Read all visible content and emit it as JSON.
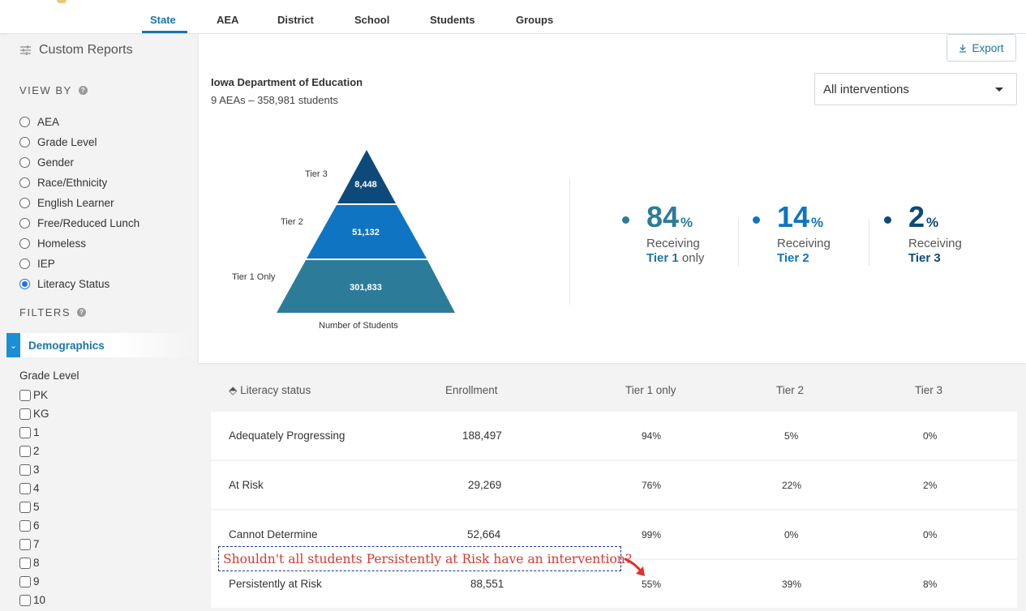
{
  "nav": {
    "tabs": [
      {
        "label": "State",
        "active": true
      },
      {
        "label": "AEA"
      },
      {
        "label": "District"
      },
      {
        "label": "School"
      },
      {
        "label": "Students"
      },
      {
        "label": "Groups"
      }
    ]
  },
  "sidebar": {
    "custom_reports": "Custom Reports",
    "view_by": "VIEW BY",
    "view_options": [
      "AEA",
      "Grade Level",
      "Gender",
      "Race/Ethnicity",
      "English Learner",
      "Free/Reduced Lunch",
      "Homeless",
      "IEP",
      "Literacy Status"
    ],
    "selected_view": "Literacy Status",
    "filters": "FILTERS",
    "demographics": "Demographics",
    "grade_level_title": "Grade Level",
    "grades": [
      "PK",
      "KG",
      "1",
      "2",
      "3",
      "4",
      "5",
      "6",
      "7",
      "8",
      "9",
      "10"
    ]
  },
  "card": {
    "export_label": "Export",
    "org_title": "Iowa Department of Education",
    "org_sub": "9 AEAs – 358,981 students",
    "select_value": "All interventions",
    "pyramid": {
      "tiers": [
        {
          "label": "Tier 3",
          "value": "8,448",
          "color": "#0d4a7a"
        },
        {
          "label": "Tier 2",
          "value": "51,132",
          "color": "#0f74c2"
        },
        {
          "label": "Tier 1 Only",
          "value": "301,833",
          "color": "#2c7c99"
        }
      ],
      "axis_label": "Number of Students"
    },
    "stats": [
      {
        "value": "84",
        "pct": "%",
        "line1": "Receiving",
        "tier": "Tier 1",
        "suffix": " only",
        "color": "#2c7c99"
      },
      {
        "value": "14",
        "pct": "%",
        "line1": "Receiving",
        "tier": "Tier 2",
        "suffix": "",
        "color": "#0f74c2"
      },
      {
        "value": "2",
        "pct": "%",
        "line1": "Receiving",
        "tier": "Tier 3",
        "suffix": "",
        "color": "#0d4a7a"
      }
    ]
  },
  "table": {
    "sort_icon": "⬘",
    "headers": [
      "Literacy status",
      "Enrollment",
      "Tier 1 only",
      "Tier 2",
      "Tier 3"
    ],
    "rows": [
      {
        "status": "Adequately Progressing",
        "enrollment": "188,497",
        "tier1": "94%",
        "tier2": "5%",
        "tier3": "0%"
      },
      {
        "status": "At Risk",
        "enrollment": "29,269",
        "tier1": "76%",
        "tier2": "22%",
        "tier3": "2%"
      },
      {
        "status": "Cannot Determine",
        "enrollment": "52,664",
        "tier1": "99%",
        "tier2": "0%",
        "tier3": "0%"
      },
      {
        "status": "Persistently at Risk",
        "enrollment": "88,551",
        "tier1": "55%",
        "tier2": "39%",
        "tier3": "8%"
      }
    ]
  },
  "annotation": "Shouldn't all students Persistently at Risk have an intervention?"
}
